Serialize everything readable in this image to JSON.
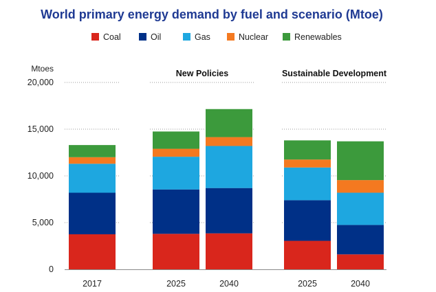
{
  "chart_data": {
    "type": "bar",
    "stacked": true,
    "title": "World primary energy demand by fuel and scenario (Mtoe)",
    "ylabel": "Mtoes",
    "xlabel": "",
    "ylim": [
      0,
      20000
    ],
    "yticks": [
      0,
      5000,
      10000,
      15000,
      20000
    ],
    "ytick_labels": [
      "0",
      "5,000",
      "10,000",
      "15,000",
      "20,000"
    ],
    "grid": true,
    "legend_position": "top",
    "groups": [
      {
        "label": "",
        "categories": [
          "2017"
        ]
      },
      {
        "label": "New Policies",
        "categories": [
          "2025",
          "2040"
        ]
      },
      {
        "label": "Sustainable Development",
        "categories": [
          "2025",
          "2040"
        ]
      }
    ],
    "categories": [
      "2017",
      "2025",
      "2040",
      "2025",
      "2040"
    ],
    "series": [
      {
        "name": "Coal",
        "color": "#d9261c",
        "values": [
          3750,
          3800,
          3850,
          3050,
          1600
        ]
      },
      {
        "name": "Oil",
        "color": "#003087",
        "values": [
          4450,
          4750,
          4850,
          4350,
          3150
        ]
      },
      {
        "name": "Gas",
        "color": "#1ea7e0",
        "values": [
          3100,
          3500,
          4500,
          3500,
          3450
        ]
      },
      {
        "name": "Nuclear",
        "color": "#f47920",
        "values": [
          700,
          850,
          950,
          850,
          1350
        ]
      },
      {
        "name": "Renewables",
        "color": "#3c9a3c",
        "values": [
          1300,
          1850,
          3000,
          2050,
          4150
        ]
      }
    ]
  }
}
